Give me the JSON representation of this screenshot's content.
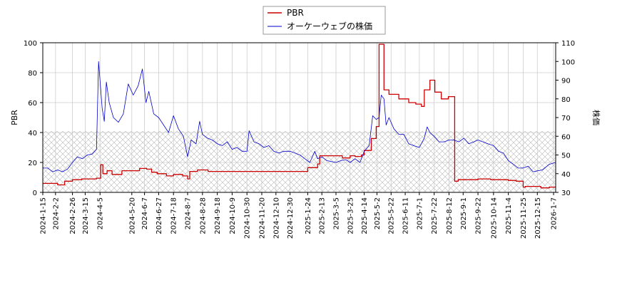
{
  "chart_data": {
    "type": "line",
    "legend": {
      "placement": "top-center"
    },
    "grid": true,
    "shaded_band": {
      "axis": "left",
      "from": 0,
      "to": 41,
      "pattern": "crosshatch"
    },
    "x_ticks": [
      "2024-1-15",
      "2024-2-2",
      "2024-2-26",
      "2024-3-15",
      "2024-4-5",
      "2024-5-20",
      "2024-6-7",
      "2024-6-27",
      "2024-7-18",
      "2024-8-7",
      "2024-8-28",
      "2024-9-18",
      "2024-10-9",
      "2024-10-30",
      "2024-11-20",
      "2024-12-10",
      "2024-12-30",
      "2025-1-24",
      "2025-2-13",
      "2025-3-5",
      "2025-3-25",
      "2025-4-14",
      "2025-5-2",
      "2025-5-22",
      "2025-6-11",
      "2025-7-1",
      "2025-7-22",
      "2025-8-12",
      "2025-9-1",
      "2025-9-22",
      "2025-10-14",
      "2025-11-4",
      "2025-11-25",
      "2025-12-15",
      "2026-1-7"
    ],
    "x_range": [
      "2024-01-15",
      "2026-01-10"
    ],
    "left_axis": {
      "label": "PBR",
      "range": [
        0,
        100
      ],
      "ticks": [
        0,
        20,
        40,
        60,
        80,
        100
      ]
    },
    "right_axis": {
      "label": "株価",
      "range": [
        30,
        110
      ],
      "ticks": [
        30,
        40,
        50,
        60,
        70,
        80,
        90,
        100,
        110
      ]
    },
    "series": [
      {
        "name": "PBR",
        "axis": "left",
        "color": "#cc0000",
        "step": true,
        "points": [
          [
            "2024-01-15",
            6
          ],
          [
            "2024-02-05",
            5
          ],
          [
            "2024-02-15",
            7.5
          ],
          [
            "2024-02-26",
            8.5
          ],
          [
            "2024-03-10",
            9
          ],
          [
            "2024-03-31",
            9.5
          ],
          [
            "2024-04-06",
            18.5
          ],
          [
            "2024-04-09",
            12.5
          ],
          [
            "2024-04-15",
            14.5
          ],
          [
            "2024-04-22",
            12
          ],
          [
            "2024-05-06",
            14.5
          ],
          [
            "2024-05-31",
            16
          ],
          [
            "2024-06-10",
            15.5
          ],
          [
            "2024-06-17",
            13.5
          ],
          [
            "2024-06-25",
            12.5
          ],
          [
            "2024-07-08",
            11
          ],
          [
            "2024-07-18",
            12
          ],
          [
            "2024-07-31",
            11
          ],
          [
            "2024-08-07",
            9
          ],
          [
            "2024-08-10",
            14
          ],
          [
            "2024-08-21",
            15
          ],
          [
            "2024-09-05",
            14
          ],
          [
            "2024-12-18",
            14
          ],
          [
            "2025-01-10",
            14
          ],
          [
            "2025-01-24",
            16.5
          ],
          [
            "2025-02-07",
            19
          ],
          [
            "2025-02-10",
            24.5
          ],
          [
            "2025-03-14",
            23
          ],
          [
            "2025-03-25",
            24.5
          ],
          [
            "2025-04-01",
            24
          ],
          [
            "2025-04-10",
            25
          ],
          [
            "2025-04-14",
            28
          ],
          [
            "2025-04-24",
            36
          ],
          [
            "2025-05-01",
            44
          ],
          [
            "2025-05-05",
            99
          ],
          [
            "2025-05-12",
            68.5
          ],
          [
            "2025-05-19",
            65.5
          ],
          [
            "2025-06-02",
            62.5
          ],
          [
            "2025-06-16",
            60
          ],
          [
            "2025-06-26",
            59
          ],
          [
            "2025-07-04",
            57.5
          ],
          [
            "2025-07-08",
            68.5
          ],
          [
            "2025-07-16",
            75
          ],
          [
            "2025-07-23",
            67
          ],
          [
            "2025-08-01",
            62.5
          ],
          [
            "2025-08-11",
            64
          ],
          [
            "2025-08-20",
            7.5
          ],
          [
            "2025-08-25",
            8.5
          ],
          [
            "2025-09-22",
            9
          ],
          [
            "2025-10-10",
            8.5
          ],
          [
            "2025-11-04",
            8
          ],
          [
            "2025-11-15",
            7.5
          ],
          [
            "2025-11-25",
            3.5
          ],
          [
            "2025-11-28",
            4
          ],
          [
            "2025-12-20",
            3
          ],
          [
            "2026-01-01",
            3.5
          ],
          [
            "2026-01-10",
            3.5
          ]
        ]
      },
      {
        "name": "オーケーウェブの株価",
        "axis": "right",
        "color": "#0000cc",
        "step": false,
        "points": [
          [
            "2024-01-15",
            43
          ],
          [
            "2024-01-22",
            43
          ],
          [
            "2024-01-29",
            41
          ],
          [
            "2024-02-05",
            42
          ],
          [
            "2024-02-12",
            41
          ],
          [
            "2024-02-19",
            42.5
          ],
          [
            "2024-02-26",
            46
          ],
          [
            "2024-03-04",
            49
          ],
          [
            "2024-03-11",
            48
          ],
          [
            "2024-03-18",
            50
          ],
          [
            "2024-03-25",
            50.5
          ],
          [
            "2024-03-31",
            53
          ],
          [
            "2024-04-03",
            100
          ],
          [
            "2024-04-08",
            75
          ],
          [
            "2024-04-11",
            68
          ],
          [
            "2024-04-14",
            89
          ],
          [
            "2024-04-18",
            78
          ],
          [
            "2024-04-24",
            70
          ],
          [
            "2024-05-01",
            67.5
          ],
          [
            "2024-05-08",
            72
          ],
          [
            "2024-05-15",
            88
          ],
          [
            "2024-05-22",
            82
          ],
          [
            "2024-05-29",
            87
          ],
          [
            "2024-06-04",
            96
          ],
          [
            "2024-06-09",
            78
          ],
          [
            "2024-06-13",
            84
          ],
          [
            "2024-06-20",
            72
          ],
          [
            "2024-06-27",
            70
          ],
          [
            "2024-07-04",
            66
          ],
          [
            "2024-07-11",
            62
          ],
          [
            "2024-07-18",
            71
          ],
          [
            "2024-07-25",
            64
          ],
          [
            "2024-08-01",
            60
          ],
          [
            "2024-08-07",
            49
          ],
          [
            "2024-08-12",
            58
          ],
          [
            "2024-08-19",
            56
          ],
          [
            "2024-08-24",
            68
          ],
          [
            "2024-08-28",
            61
          ],
          [
            "2024-09-04",
            59
          ],
          [
            "2024-09-11",
            58
          ],
          [
            "2024-09-18",
            56
          ],
          [
            "2024-09-25",
            55
          ],
          [
            "2024-10-02",
            57
          ],
          [
            "2024-10-09",
            53
          ],
          [
            "2024-10-16",
            54
          ],
          [
            "2024-10-23",
            52
          ],
          [
            "2024-10-30",
            52
          ],
          [
            "2024-11-02",
            63
          ],
          [
            "2024-11-09",
            57
          ],
          [
            "2024-11-16",
            56
          ],
          [
            "2024-11-23",
            54
          ],
          [
            "2024-11-30",
            55
          ],
          [
            "2024-12-07",
            52
          ],
          [
            "2024-12-14",
            51
          ],
          [
            "2024-12-21",
            52
          ],
          [
            "2024-12-30",
            52
          ],
          [
            "2025-01-06",
            51
          ],
          [
            "2025-01-13",
            50
          ],
          [
            "2025-01-20",
            48
          ],
          [
            "2025-01-27",
            46
          ],
          [
            "2025-02-03",
            52
          ],
          [
            "2025-02-07",
            48
          ],
          [
            "2025-02-13",
            49
          ],
          [
            "2025-02-20",
            47
          ],
          [
            "2025-03-05",
            46
          ],
          [
            "2025-03-12",
            47
          ],
          [
            "2025-03-19",
            47.5
          ],
          [
            "2025-03-25",
            46
          ],
          [
            "2025-04-01",
            48
          ],
          [
            "2025-04-08",
            46
          ],
          [
            "2025-04-14",
            52
          ],
          [
            "2025-04-21",
            55
          ],
          [
            "2025-04-26",
            71
          ],
          [
            "2025-05-01",
            69
          ],
          [
            "2025-05-05",
            70
          ],
          [
            "2025-05-08",
            82
          ],
          [
            "2025-05-12",
            80
          ],
          [
            "2025-05-15",
            66
          ],
          [
            "2025-05-19",
            70
          ],
          [
            "2025-05-26",
            64
          ],
          [
            "2025-06-02",
            61
          ],
          [
            "2025-06-09",
            61
          ],
          [
            "2025-06-16",
            56
          ],
          [
            "2025-06-23",
            55
          ],
          [
            "2025-07-01",
            54
          ],
          [
            "2025-07-08",
            59
          ],
          [
            "2025-07-12",
            65
          ],
          [
            "2025-07-16",
            62
          ],
          [
            "2025-07-22",
            60
          ],
          [
            "2025-07-29",
            57
          ],
          [
            "2025-08-05",
            57
          ],
          [
            "2025-08-12",
            58
          ],
          [
            "2025-08-19",
            58
          ],
          [
            "2025-08-26",
            57
          ],
          [
            "2025-09-02",
            59
          ],
          [
            "2025-09-09",
            56
          ],
          [
            "2025-09-16",
            57
          ],
          [
            "2025-09-22",
            58
          ],
          [
            "2025-09-29",
            57
          ],
          [
            "2025-10-06",
            56
          ],
          [
            "2025-10-14",
            55
          ],
          [
            "2025-10-21",
            52
          ],
          [
            "2025-10-28",
            51
          ],
          [
            "2025-11-04",
            47
          ],
          [
            "2025-11-11",
            45
          ],
          [
            "2025-11-18",
            43
          ],
          [
            "2025-11-25",
            43
          ],
          [
            "2025-12-02",
            44
          ],
          [
            "2025-12-09",
            41
          ],
          [
            "2025-12-15",
            41.5
          ],
          [
            "2025-12-22",
            42
          ],
          [
            "2026-01-01",
            45
          ],
          [
            "2026-01-10",
            46
          ]
        ]
      }
    ]
  }
}
